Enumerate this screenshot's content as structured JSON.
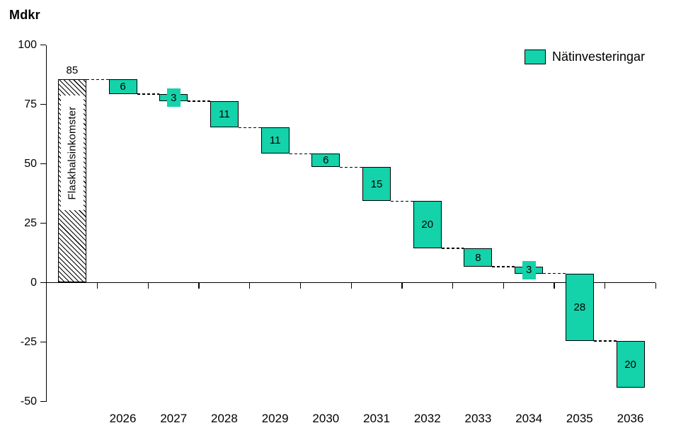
{
  "title": "Mdkr",
  "legend": {
    "label": "Nätinvesteringar"
  },
  "colors": {
    "bar_fill": "#14d2aa",
    "bar_border": "#000000",
    "axis": "#000000",
    "text": "#000000",
    "background": "#ffffff"
  },
  "y_axis": {
    "ticks": [
      100,
      75,
      50,
      25,
      0,
      -25,
      -50
    ],
    "min": -50,
    "max": 100
  },
  "chart_data": {
    "type": "bar",
    "subtype": "waterfall",
    "title": "Mdkr",
    "unit_label": "Mdkr",
    "legend_entries": [
      "Nätinvesteringar"
    ],
    "legend_position": "top-right",
    "grid": false,
    "ylim": [
      -50,
      100
    ],
    "y_ticks": [
      100,
      75,
      50,
      25,
      0,
      -25,
      -50
    ],
    "start_bar": {
      "name": "Flaskhalsinkomster",
      "value": 85,
      "display": "85",
      "style": "hatched",
      "from": 0,
      "to": 85.5
    },
    "categories": [
      "2026",
      "2027",
      "2028",
      "2029",
      "2030",
      "2031",
      "2032",
      "2033",
      "2034",
      "2035",
      "2036"
    ],
    "values": [
      6,
      3,
      11,
      11,
      6,
      15,
      20,
      8,
      3,
      28,
      20
    ],
    "series": [
      {
        "name": "Nätinvesteringar",
        "role": "decrease",
        "values": [
          6,
          3,
          11,
          11,
          6,
          15,
          20,
          8,
          3,
          28,
          20
        ]
      }
    ],
    "steps": [
      {
        "year": "2026",
        "value": 6,
        "from": 85.5,
        "to": 79.3
      },
      {
        "year": "2027",
        "value": 3,
        "from": 79.3,
        "to": 76.3
      },
      {
        "year": "2028",
        "value": 11,
        "from": 76.3,
        "to": 65.2
      },
      {
        "year": "2029",
        "value": 11,
        "from": 65.2,
        "to": 54.2
      },
      {
        "year": "2030",
        "value": 6,
        "from": 54.2,
        "to": 48.6
      },
      {
        "year": "2031",
        "value": 15,
        "from": 48.6,
        "to": 34.3
      },
      {
        "year": "2032",
        "value": 20,
        "from": 34.3,
        "to": 14.4
      },
      {
        "year": "2033",
        "value": 8,
        "from": 14.4,
        "to": 6.7
      },
      {
        "year": "2034",
        "value": 3,
        "from": 6.7,
        "to": 3.8
      },
      {
        "year": "2035",
        "value": 28,
        "from": 3.8,
        "to": -24.5
      },
      {
        "year": "2036",
        "value": 20,
        "from": -24.5,
        "to": -44.3
      }
    ]
  }
}
